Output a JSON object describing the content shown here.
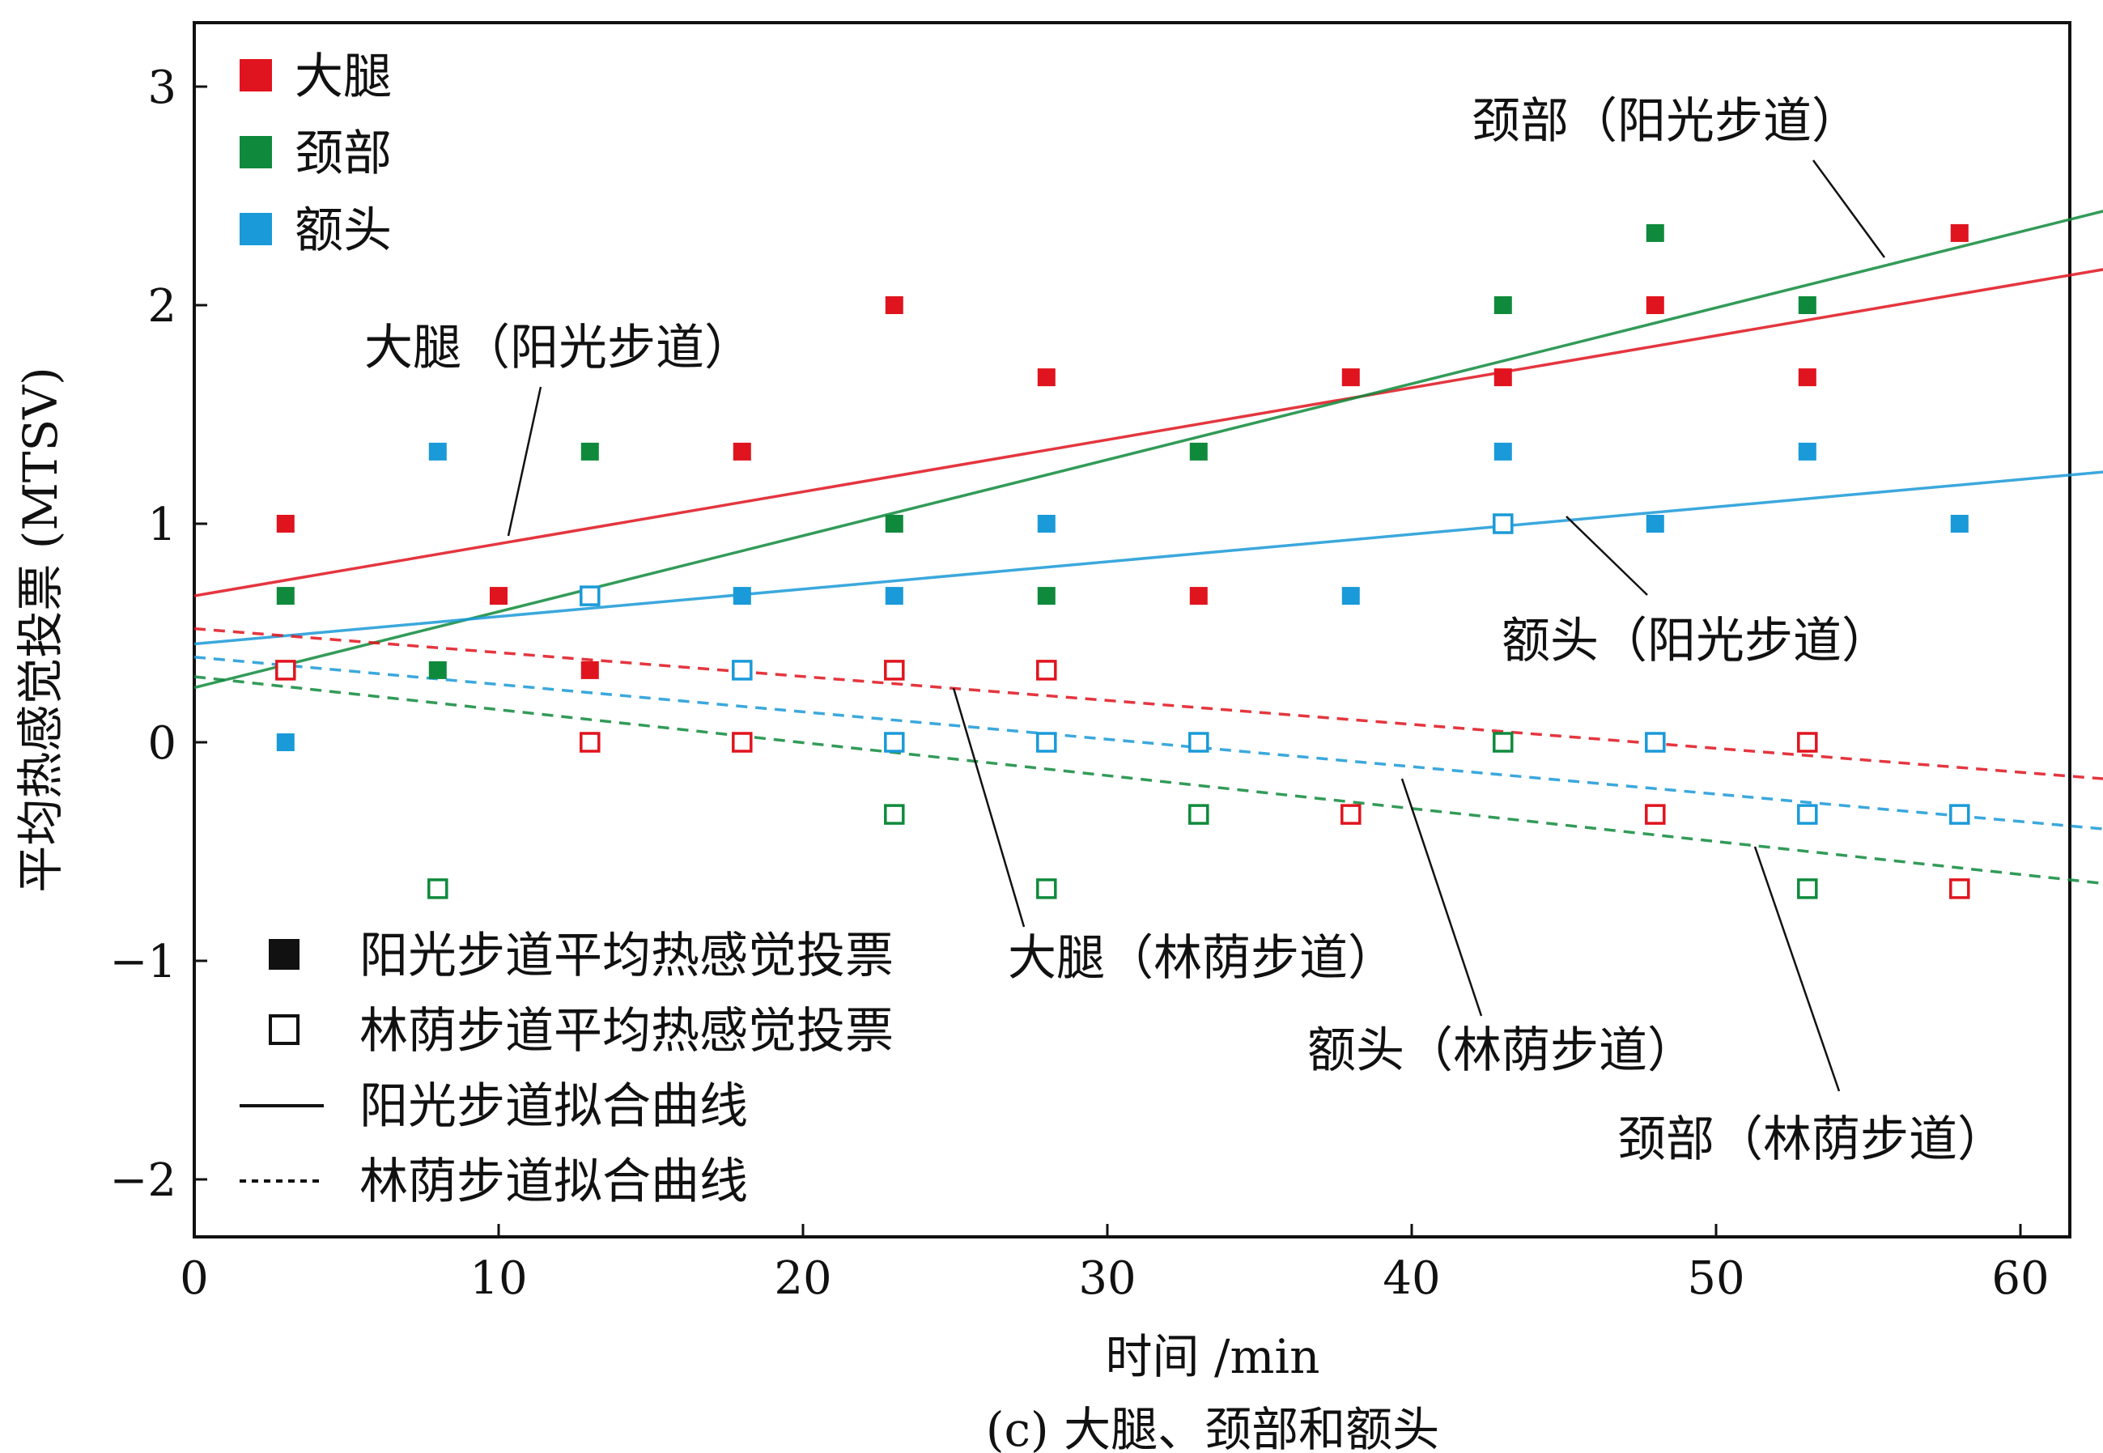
{
  "chart_data": {
    "type": "scatter",
    "xlabel": "时间 /min",
    "ylabel": "平均热感觉投票 (MTSV)",
    "caption": "(c) 大腿、颈部和额头",
    "xlim": [
      0,
      63
    ],
    "ylim": [
      -2.3,
      3.3
    ],
    "xticks": [
      0,
      10,
      20,
      30,
      40,
      50,
      60
    ],
    "yticks": [
      3,
      2,
      1,
      0,
      -1,
      -2
    ],
    "ytick_labels": [
      "3",
      "2",
      "1",
      "0",
      "−1",
      "−2"
    ],
    "grid": false,
    "colors": {
      "thigh": "#e0141e",
      "neck": "#0f8a3c",
      "forehead": "#1a9ad8"
    },
    "legend_top": {
      "position": "top-left",
      "entries": [
        {
          "key": "thigh",
          "label": "大腿"
        },
        {
          "key": "neck",
          "label": "颈部"
        },
        {
          "key": "forehead",
          "label": "额头"
        }
      ]
    },
    "legend_bottom": {
      "position": "bottom-left",
      "entries": [
        {
          "symbol": "filled-square",
          "label": "阳光步道平均热感觉投票"
        },
        {
          "symbol": "open-square",
          "label": "林荫步道平均热感觉投票"
        },
        {
          "symbol": "solid-line",
          "label": "阳光步道拟合曲线"
        },
        {
          "symbol": "dotted-line",
          "label": "林荫步道拟合曲线"
        }
      ]
    },
    "series": [
      {
        "part": "thigh",
        "route": "sun",
        "x": [
          3,
          10,
          13,
          18,
          23,
          28,
          33,
          38,
          43,
          48,
          53,
          58
        ],
        "y": [
          1.0,
          0.67,
          0.33,
          1.33,
          2.0,
          1.67,
          0.67,
          1.67,
          1.67,
          2.0,
          1.67,
          2.33
        ]
      },
      {
        "part": "neck",
        "route": "sun",
        "x": [
          3,
          8,
          13,
          23,
          28,
          33,
          43,
          48,
          53
        ],
        "y": [
          0.67,
          0.33,
          1.33,
          1.0,
          0.67,
          1.33,
          2.0,
          2.33,
          2.0
        ]
      },
      {
        "part": "forehead",
        "route": "sun",
        "x": [
          3,
          8,
          18,
          23,
          28,
          38,
          43,
          48,
          53,
          58
        ],
        "y": [
          0.0,
          1.33,
          0.67,
          0.67,
          1.0,
          0.67,
          1.33,
          1.0,
          1.33,
          1.0
        ]
      },
      {
        "part": "thigh",
        "route": "shade",
        "x": [
          3,
          13,
          18,
          23,
          28,
          38,
          48,
          53,
          58
        ],
        "y": [
          0.33,
          0.0,
          0.0,
          0.33,
          0.33,
          -0.33,
          -0.33,
          0.0,
          -0.67
        ]
      },
      {
        "part": "neck",
        "route": "shade",
        "x": [
          8,
          23,
          28,
          33,
          43,
          53
        ],
        "y": [
          -0.67,
          -0.33,
          -0.67,
          -0.33,
          0.0,
          -0.67
        ]
      },
      {
        "part": "forehead",
        "route": "shade",
        "x": [
          13,
          18,
          23,
          28,
          33,
          43,
          48,
          53,
          58
        ],
        "y": [
          0.67,
          0.33,
          0.0,
          0.0,
          0.0,
          1.0,
          0.0,
          -0.33,
          -0.33
        ]
      }
    ],
    "fit_lines": [
      {
        "part": "thigh",
        "route": "sun",
        "from": [
          0,
          0.67
        ],
        "to": [
          63,
          2.17
        ],
        "label": "大腿（阳光步道）"
      },
      {
        "part": "neck",
        "route": "sun",
        "from": [
          0,
          0.25
        ],
        "to": [
          63,
          2.44
        ],
        "label": "颈部（阳光步道）"
      },
      {
        "part": "forehead",
        "route": "sun",
        "from": [
          0,
          0.45
        ],
        "to": [
          63,
          1.24
        ],
        "label": "额头（阳光步道）"
      },
      {
        "part": "thigh",
        "route": "shade",
        "from": [
          0,
          0.52
        ],
        "to": [
          63,
          -0.17
        ],
        "label": "大腿（林荫步道）"
      },
      {
        "part": "forehead",
        "route": "shade",
        "from": [
          0,
          0.39
        ],
        "to": [
          63,
          -0.4
        ],
        "label": "额头（林荫步道）"
      },
      {
        "part": "neck",
        "route": "shade",
        "from": [
          0,
          0.3
        ],
        "to": [
          63,
          -0.65
        ],
        "label": "颈部（林荫步道）"
      }
    ]
  }
}
